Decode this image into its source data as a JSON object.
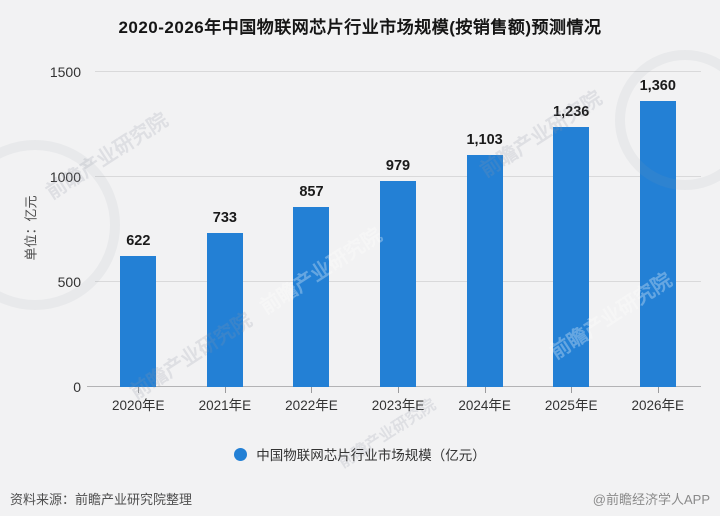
{
  "title": "2020-2026年中国物联网芯片行业市场规模(按销售额)预测情况",
  "chart_data": {
    "type": "bar",
    "categories": [
      "2020年E",
      "2021年E",
      "2022年E",
      "2023年E",
      "2024年E",
      "2025年E",
      "2026年E"
    ],
    "values": [
      622,
      733,
      857,
      979,
      1103,
      1236,
      1360
    ],
    "title": "2020-2026年中国物联网芯片行业市场规模(按销售额)预测情况",
    "xlabel": "",
    "ylabel": "单位：亿元",
    "ylim": [
      0,
      1500
    ],
    "yticks": [
      0,
      500,
      1000,
      1500
    ],
    "grid": true,
    "bar_color": "#2380d5",
    "legend": [
      "中国物联网芯片行业市场规模（亿元）"
    ],
    "legend_position": "bottom"
  },
  "legend": {
    "label": "中国物联网芯片行业市场规模（亿元）"
  },
  "footer": {
    "source": "资料来源：前瞻产业研究院整理",
    "credit": "@前瞻经济学人APP"
  },
  "watermark": {
    "text": "前瞻产业研究院"
  }
}
